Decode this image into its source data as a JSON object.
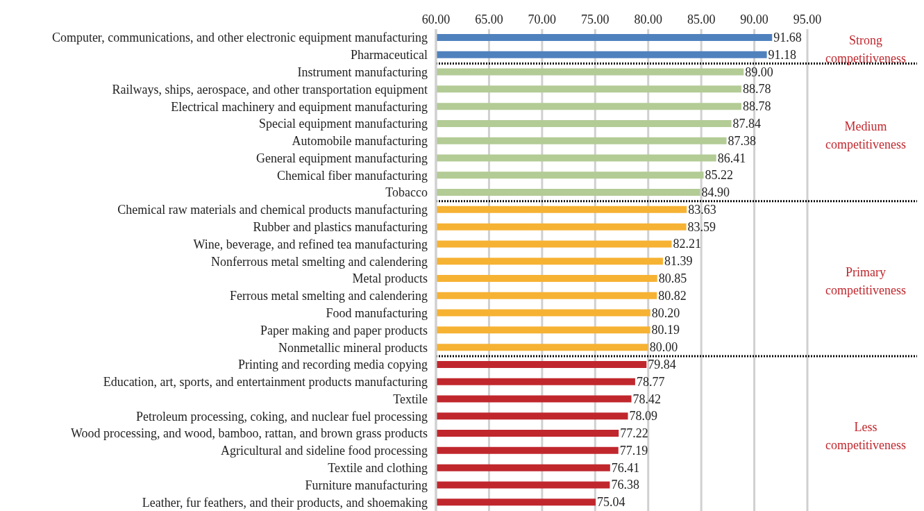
{
  "chart_data": {
    "type": "bar",
    "orientation": "horizontal",
    "categories": [
      "Computer, communications, and other electronic equipment manufacturing",
      "Pharmaceutical",
      "Instrument manufacturing",
      "Railways, ships, aerospace, and other transportation equipment",
      "Electrical machinery and equipment manufacturing",
      "Special equipment manufacturing",
      "Automobile manufacturing",
      "General equipment manufacturing",
      "Chemical fiber manufacturing",
      "Tobacco",
      "Chemical raw materials and chemical products manufacturing",
      "Rubber and plastics manufacturing",
      "Wine, beverage, and refined tea manufacturing",
      "Nonferrous metal smelting and calendering",
      "Metal products",
      "Ferrous metal smelting and calendering",
      "Food manufacturing",
      "Paper making and paper products",
      "Nonmetallic mineral products",
      "Printing and recording media copying",
      "Education, art, sports, and entertainment products manufacturing",
      "Textile",
      "Petroleum processing, coking, and nuclear fuel processing",
      "Wood processing, and wood, bamboo, rattan, and brown grass products",
      "Agricultural and sideline food processing",
      "Textile and clothing",
      "Furniture manufacturing",
      "Leather, fur feathers, and their products, and shoemaking"
    ],
    "values": [
      91.68,
      91.18,
      89.0,
      88.78,
      88.78,
      87.84,
      87.38,
      86.41,
      85.22,
      84.9,
      83.63,
      83.59,
      82.21,
      81.39,
      80.85,
      80.82,
      80.2,
      80.19,
      80.0,
      79.84,
      78.77,
      78.42,
      78.09,
      77.22,
      77.19,
      76.41,
      76.38,
      75.04
    ],
    "value_labels": [
      "91.68",
      "91.18",
      "89.00",
      "88.78",
      "88.78",
      "87.84",
      "87.38",
      "86.41",
      "85.22",
      "84.90",
      "83.63",
      "83.59",
      "82.21",
      "81.39",
      "80.85",
      "80.82",
      "80.20",
      "80.19",
      "80.00",
      "79.84",
      "78.77",
      "78.42",
      "78.09",
      "77.22",
      "77.19",
      "76.41",
      "76.38",
      "75.04"
    ],
    "colors": [
      "#4f81bd",
      "#4f81bd",
      "#b3cb95",
      "#b3cb95",
      "#b3cb95",
      "#b3cb95",
      "#b3cb95",
      "#b3cb95",
      "#b3cb95",
      "#b3cb95",
      "#f6b233",
      "#f6b233",
      "#f6b233",
      "#f6b233",
      "#f6b233",
      "#f6b233",
      "#f6b233",
      "#f6b233",
      "#f6b233",
      "#c0272d",
      "#c0272d",
      "#c0272d",
      "#c0272d",
      "#c0272d",
      "#c0272d",
      "#c0272d",
      "#c0272d",
      "#c0272d"
    ],
    "xlim": [
      60,
      95
    ],
    "xticks": [
      {
        "value": 60,
        "label": "60.00"
      },
      {
        "value": 65,
        "label": "65.00"
      },
      {
        "value": 70,
        "label": "70.00"
      },
      {
        "value": 75,
        "label": "75.00"
      },
      {
        "value": 80,
        "label": "80.00"
      },
      {
        "value": 85,
        "label": "85.00"
      },
      {
        "value": 90,
        "label": "90.00"
      },
      {
        "value": 95,
        "label": "95.00"
      }
    ],
    "grid": "x",
    "ref_lines": [
      {
        "axis": "y",
        "value": "Pharmaceutical",
        "color": "#000000",
        "line_style": "dotted"
      },
      {
        "axis": "y",
        "value": "Tobacco",
        "color": "#000000",
        "line_style": "dotted"
      },
      {
        "axis": "y",
        "value": "Nonmetallic mineral products",
        "color": "#000000",
        "line_style": "dotted"
      }
    ],
    "annotations": [
      "Strong competitiveness",
      "Medium competitiveness",
      "Primary competitiveness",
      "Less competitiveness"
    ]
  }
}
